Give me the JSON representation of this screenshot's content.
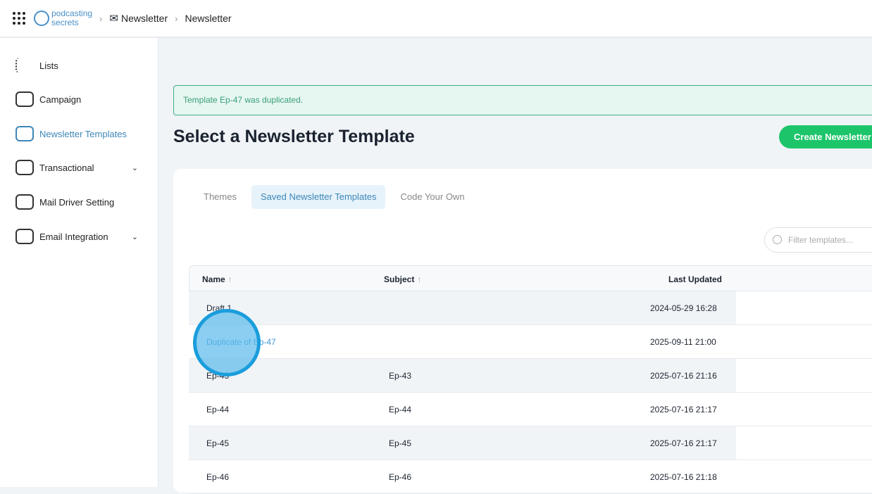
{
  "header": {
    "logo_text_1": "podcasting",
    "logo_text_2": "secrets",
    "breadcrumb": [
      "Newsletter",
      "Newsletter"
    ]
  },
  "sidebar": {
    "items": [
      {
        "label": "Lists"
      },
      {
        "label": "Campaign"
      },
      {
        "label": "Newsletter Templates",
        "active": true
      },
      {
        "label": "Transactional",
        "expandable": true
      },
      {
        "label": "Mail Driver Setting"
      },
      {
        "label": "Email Integration",
        "expandable": true
      }
    ]
  },
  "alert": "Template Ep-47 was duplicated.",
  "title": "Select a Newsletter Template",
  "create_button": "Create Newsletter",
  "tabs": [
    "Themes",
    "Saved Newsletter Templates",
    "Code Your Own"
  ],
  "filter_placeholder": "Filter templates...",
  "table": {
    "columns": [
      "Name",
      "Subject",
      "Last Updated"
    ],
    "sort_arrow": "↑",
    "rows": [
      {
        "name": "Draft 1",
        "subject": "",
        "updated": "2024-05-29 16:28"
      },
      {
        "name": "Duplicate of Ep-47",
        "subject": "",
        "updated": "2025-09-11 21:00"
      },
      {
        "name": "Ep-43",
        "subject": "Ep-43",
        "updated": "2025-07-16 21:16"
      },
      {
        "name": "Ep-44",
        "subject": "Ep-44",
        "updated": "2025-07-16 21:17"
      },
      {
        "name": "Ep-45",
        "subject": "Ep-45",
        "updated": "2025-07-16 21:17"
      },
      {
        "name": "Ep-46",
        "subject": "Ep-46",
        "updated": "2025-07-16 21:18"
      }
    ]
  },
  "colors": {
    "accent": "#3d86b8",
    "create": "#1dc56a",
    "alert_bg": "#e6f7f1"
  }
}
